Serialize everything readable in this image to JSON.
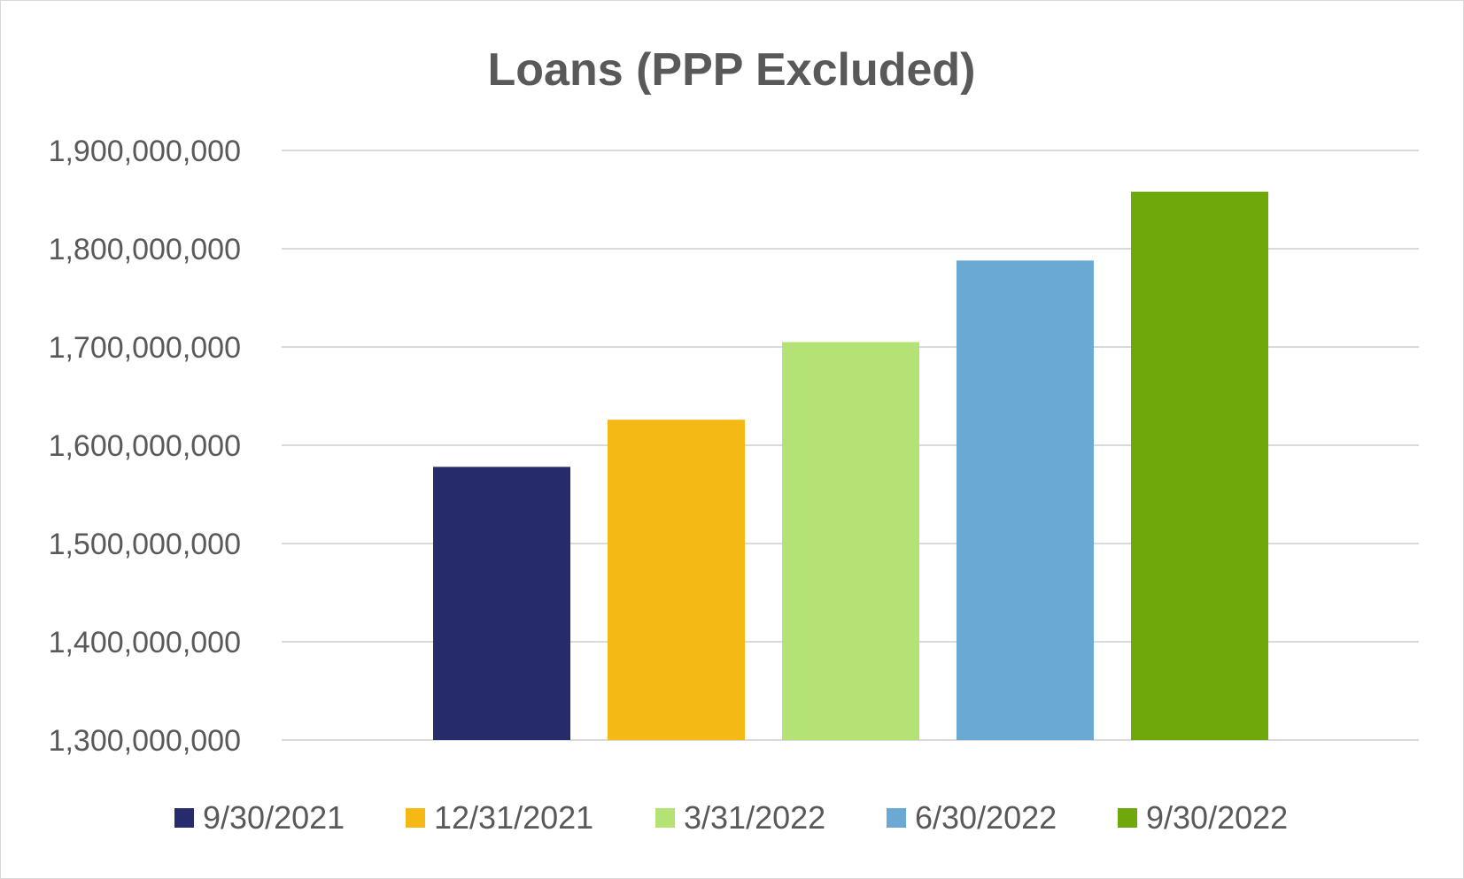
{
  "chart_data": {
    "type": "bar",
    "title": "Loans (PPP Excluded)",
    "xlabel": "",
    "ylabel": "",
    "ylim": [
      1300000000,
      1900000000
    ],
    "y_ticks": [
      1300000000,
      1400000000,
      1500000000,
      1600000000,
      1700000000,
      1800000000,
      1900000000
    ],
    "y_tick_labels": [
      "1,300,000,000",
      "1,400,000,000",
      "1,500,000,000",
      "1,600,000,000",
      "1,700,000,000",
      "1,800,000,000",
      "1,900,000,000"
    ],
    "grid": true,
    "legend_position": "bottom",
    "series": [
      {
        "name": "9/30/2021",
        "value": 1578000000,
        "color": "#262b6b"
      },
      {
        "name": "12/31/2021",
        "value": 1626000000,
        "color": "#f5b916"
      },
      {
        "name": "3/31/2022",
        "value": 1705000000,
        "color": "#b4e275"
      },
      {
        "name": "6/30/2022",
        "value": 1788000000,
        "color": "#6ba9d5"
      },
      {
        "name": "9/30/2022",
        "value": 1858000000,
        "color": "#6fa80a"
      }
    ]
  }
}
